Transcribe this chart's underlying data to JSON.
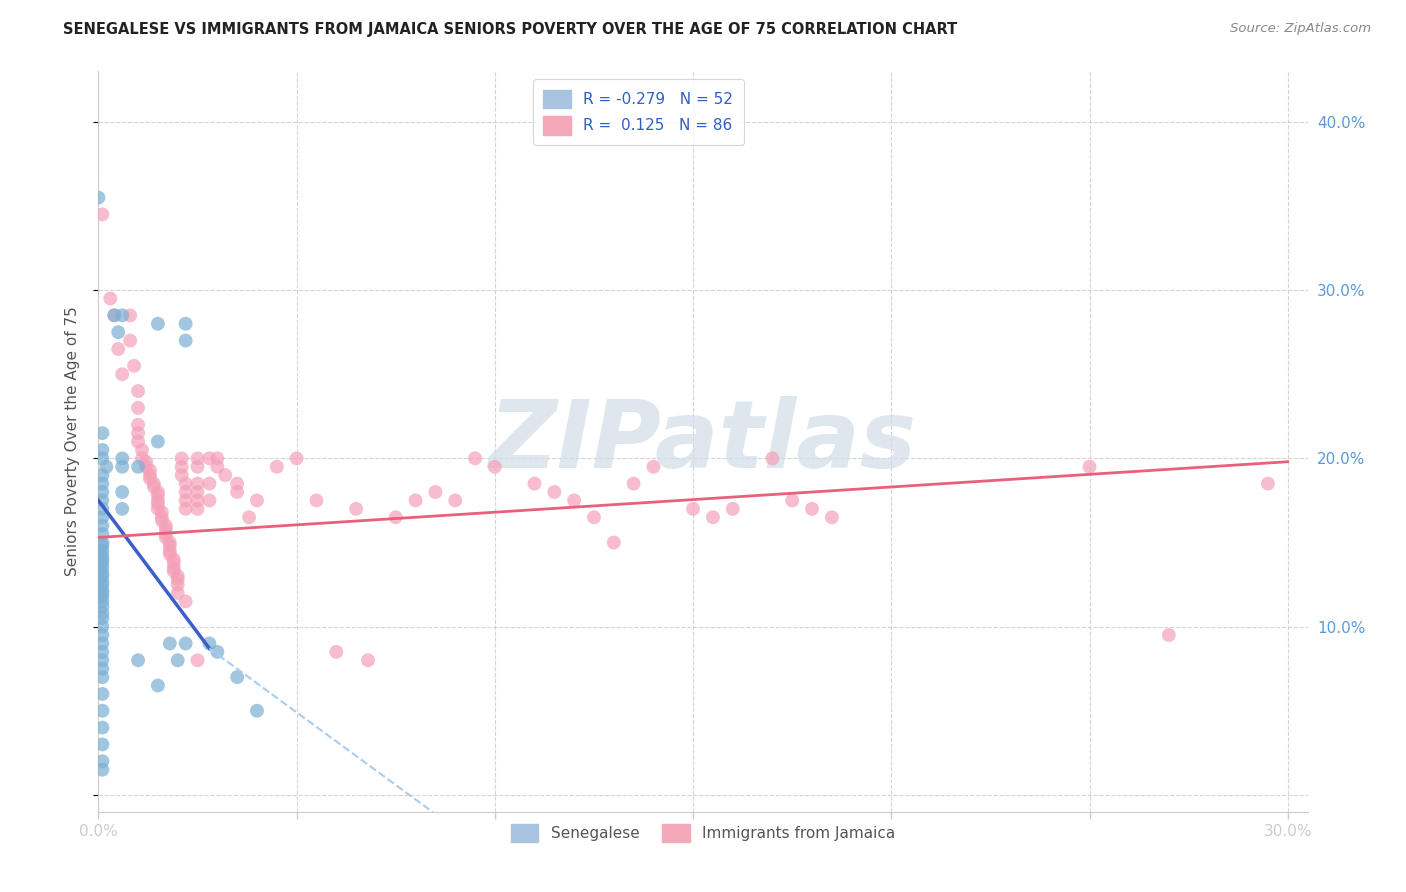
{
  "title": "SENEGALESE VS IMMIGRANTS FROM JAMAICA SENIORS POVERTY OVER THE AGE OF 75 CORRELATION CHART",
  "source": "Source: ZipAtlas.com",
  "ylabel": "Seniors Poverty Over the Age of 75",
  "yticks_vals": [
    0.0,
    0.1,
    0.2,
    0.3,
    0.4
  ],
  "yticks_labels": [
    "",
    "10.0%",
    "20.0%",
    "30.0%",
    "40.0%"
  ],
  "xticks_vals": [
    0.0,
    0.05,
    0.1,
    0.15,
    0.2,
    0.25,
    0.3
  ],
  "xticks_labels": [
    "0.0%",
    "",
    "",
    "",
    "",
    "",
    "30.0%"
  ],
  "xlim": [
    0.0,
    0.305
  ],
  "ylim": [
    -0.01,
    0.43
  ],
  "scatter_senegalese": [
    [
      0.0,
      0.355
    ],
    [
      0.004,
      0.285
    ],
    [
      0.005,
      0.275
    ],
    [
      0.006,
      0.285
    ],
    [
      0.001,
      0.215
    ],
    [
      0.001,
      0.205
    ],
    [
      0.001,
      0.2
    ],
    [
      0.002,
      0.195
    ],
    [
      0.001,
      0.19
    ],
    [
      0.001,
      0.185
    ],
    [
      0.001,
      0.18
    ],
    [
      0.001,
      0.175
    ],
    [
      0.001,
      0.17
    ],
    [
      0.001,
      0.165
    ],
    [
      0.001,
      0.16
    ],
    [
      0.001,
      0.155
    ],
    [
      0.001,
      0.15
    ],
    [
      0.001,
      0.148
    ],
    [
      0.001,
      0.145
    ],
    [
      0.001,
      0.142
    ],
    [
      0.001,
      0.14
    ],
    [
      0.001,
      0.138
    ],
    [
      0.001,
      0.135
    ],
    [
      0.001,
      0.132
    ],
    [
      0.001,
      0.13
    ],
    [
      0.001,
      0.127
    ],
    [
      0.001,
      0.125
    ],
    [
      0.001,
      0.122
    ],
    [
      0.001,
      0.12
    ],
    [
      0.001,
      0.118
    ],
    [
      0.001,
      0.115
    ],
    [
      0.001,
      0.112
    ],
    [
      0.001,
      0.108
    ],
    [
      0.001,
      0.105
    ],
    [
      0.001,
      0.1
    ],
    [
      0.001,
      0.095
    ],
    [
      0.001,
      0.09
    ],
    [
      0.001,
      0.085
    ],
    [
      0.001,
      0.08
    ],
    [
      0.001,
      0.075
    ],
    [
      0.001,
      0.07
    ],
    [
      0.001,
      0.06
    ],
    [
      0.001,
      0.05
    ],
    [
      0.001,
      0.04
    ],
    [
      0.001,
      0.03
    ],
    [
      0.001,
      0.02
    ],
    [
      0.001,
      0.015
    ],
    [
      0.006,
      0.2
    ],
    [
      0.006,
      0.195
    ],
    [
      0.006,
      0.18
    ],
    [
      0.006,
      0.17
    ],
    [
      0.01,
      0.195
    ],
    [
      0.01,
      0.08
    ],
    [
      0.015,
      0.28
    ],
    [
      0.015,
      0.21
    ],
    [
      0.015,
      0.065
    ],
    [
      0.018,
      0.09
    ],
    [
      0.02,
      0.08
    ],
    [
      0.022,
      0.28
    ],
    [
      0.022,
      0.27
    ],
    [
      0.022,
      0.09
    ],
    [
      0.028,
      0.09
    ],
    [
      0.03,
      0.085
    ],
    [
      0.035,
      0.07
    ],
    [
      0.04,
      0.05
    ]
  ],
  "scatter_jamaica": [
    [
      0.001,
      0.345
    ],
    [
      0.003,
      0.295
    ],
    [
      0.004,
      0.285
    ],
    [
      0.005,
      0.265
    ],
    [
      0.006,
      0.25
    ],
    [
      0.008,
      0.285
    ],
    [
      0.008,
      0.27
    ],
    [
      0.009,
      0.255
    ],
    [
      0.01,
      0.24
    ],
    [
      0.01,
      0.23
    ],
    [
      0.01,
      0.22
    ],
    [
      0.01,
      0.215
    ],
    [
      0.01,
      0.21
    ],
    [
      0.011,
      0.205
    ],
    [
      0.011,
      0.2
    ],
    [
      0.012,
      0.198
    ],
    [
      0.012,
      0.195
    ],
    [
      0.013,
      0.193
    ],
    [
      0.013,
      0.19
    ],
    [
      0.013,
      0.188
    ],
    [
      0.014,
      0.185
    ],
    [
      0.014,
      0.183
    ],
    [
      0.015,
      0.18
    ],
    [
      0.015,
      0.178
    ],
    [
      0.015,
      0.175
    ],
    [
      0.015,
      0.173
    ],
    [
      0.015,
      0.17
    ],
    [
      0.016,
      0.168
    ],
    [
      0.016,
      0.165
    ],
    [
      0.016,
      0.163
    ],
    [
      0.017,
      0.16
    ],
    [
      0.017,
      0.158
    ],
    [
      0.017,
      0.155
    ],
    [
      0.017,
      0.153
    ],
    [
      0.018,
      0.15
    ],
    [
      0.018,
      0.148
    ],
    [
      0.018,
      0.145
    ],
    [
      0.018,
      0.143
    ],
    [
      0.019,
      0.14
    ],
    [
      0.019,
      0.138
    ],
    [
      0.019,
      0.135
    ],
    [
      0.019,
      0.133
    ],
    [
      0.02,
      0.13
    ],
    [
      0.02,
      0.128
    ],
    [
      0.02,
      0.125
    ],
    [
      0.02,
      0.12
    ],
    [
      0.021,
      0.2
    ],
    [
      0.021,
      0.195
    ],
    [
      0.021,
      0.19
    ],
    [
      0.022,
      0.185
    ],
    [
      0.022,
      0.18
    ],
    [
      0.022,
      0.175
    ],
    [
      0.022,
      0.17
    ],
    [
      0.022,
      0.115
    ],
    [
      0.025,
      0.2
    ],
    [
      0.025,
      0.195
    ],
    [
      0.025,
      0.185
    ],
    [
      0.025,
      0.18
    ],
    [
      0.025,
      0.175
    ],
    [
      0.025,
      0.17
    ],
    [
      0.025,
      0.08
    ],
    [
      0.028,
      0.2
    ],
    [
      0.028,
      0.185
    ],
    [
      0.028,
      0.175
    ],
    [
      0.03,
      0.2
    ],
    [
      0.03,
      0.195
    ],
    [
      0.032,
      0.19
    ],
    [
      0.035,
      0.185
    ],
    [
      0.035,
      0.18
    ],
    [
      0.038,
      0.165
    ],
    [
      0.04,
      0.175
    ],
    [
      0.045,
      0.195
    ],
    [
      0.05,
      0.2
    ],
    [
      0.055,
      0.175
    ],
    [
      0.06,
      0.085
    ],
    [
      0.065,
      0.17
    ],
    [
      0.068,
      0.08
    ],
    [
      0.075,
      0.165
    ],
    [
      0.08,
      0.175
    ],
    [
      0.085,
      0.18
    ],
    [
      0.09,
      0.175
    ],
    [
      0.095,
      0.2
    ],
    [
      0.1,
      0.195
    ],
    [
      0.11,
      0.185
    ],
    [
      0.115,
      0.18
    ],
    [
      0.12,
      0.175
    ],
    [
      0.125,
      0.165
    ],
    [
      0.13,
      0.15
    ],
    [
      0.135,
      0.185
    ],
    [
      0.14,
      0.195
    ],
    [
      0.15,
      0.17
    ],
    [
      0.155,
      0.165
    ],
    [
      0.16,
      0.17
    ],
    [
      0.17,
      0.2
    ],
    [
      0.175,
      0.175
    ],
    [
      0.18,
      0.17
    ],
    [
      0.185,
      0.165
    ],
    [
      0.25,
      0.195
    ],
    [
      0.27,
      0.095
    ],
    [
      0.295,
      0.185
    ]
  ],
  "trendline_senegalese": {
    "x": [
      0.0,
      0.028
    ],
    "y": [
      0.175,
      0.087
    ],
    "color": "#3a5fc8",
    "linewidth": 2.5
  },
  "trendline_senegalese_ext": {
    "x": [
      0.028,
      0.09
    ],
    "y": [
      0.087,
      -0.02
    ],
    "color": "#aaccee",
    "linewidth": 1.5
  },
  "trendline_jamaica": {
    "x": [
      0.0,
      0.3
    ],
    "y": [
      0.153,
      0.198
    ],
    "color": "#e8607a",
    "linewidth": 2.0
  },
  "scatter_color_senegalese": "#7bafd4",
  "scatter_color_jamaica": "#f4a0b8",
  "scatter_size": 100,
  "scatter_alpha": 0.7,
  "watermark_text": "ZIPatlas",
  "watermark_color": "#d0dde8",
  "background_color": "#ffffff",
  "grid_color": "#d0d0d0",
  "title_fontsize": 10.5,
  "tick_color": "#5b9bd5",
  "ylabel_color": "#555555",
  "legend_R_color": "#3060c0",
  "legend_N_color": "#3060c0"
}
